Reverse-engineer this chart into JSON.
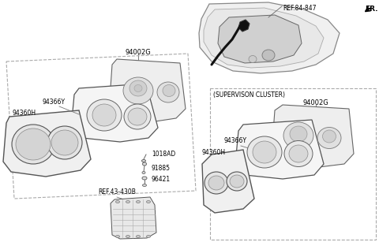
{
  "background_color": "#ffffff",
  "text_color": "#000000",
  "line_color": "#555555",
  "dark_color": "#333333",
  "gray_fill": "#f0f0f0",
  "mid_fill": "#e8e8e8",
  "dark_fill": "#d0d0d0",
  "fr_label": "FR.",
  "ref_84_847": "REF.84-847",
  "label_94002G_top": "94002G",
  "label_94366Y_left": "94366Y",
  "label_94360H_left": "94360H",
  "label_1018AD": "1018AD",
  "label_91885": "91885",
  "label_96421": "96421",
  "label_ref_43_430B": "REF.43-430B",
  "label_supervision": "(SUPERVISON CLUSTER)",
  "label_94002G_right": "94002G",
  "label_94366Y_right": "94366Y",
  "label_94360H_right": "94360H"
}
